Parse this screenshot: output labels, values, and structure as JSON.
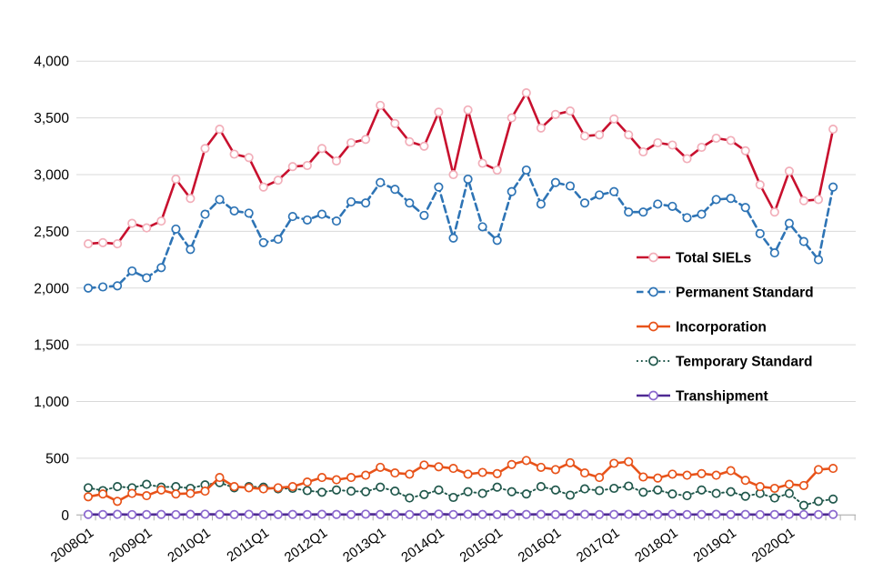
{
  "chart_data": {
    "type": "line",
    "title": "",
    "xlabel": "",
    "ylabel": "",
    "ylim": [
      0,
      4000
    ],
    "ytick_step": 500,
    "ytick_labels": [
      "0",
      "500",
      "1,000",
      "1,500",
      "2,000",
      "2,500",
      "3,000",
      "3,500",
      "4,000"
    ],
    "x_tick_labels_shown": [
      "2008Q1",
      "2009Q1",
      "2010Q1",
      "2011Q1",
      "2012Q1",
      "2013Q1",
      "2014Q1",
      "2015Q1",
      "2016Q1",
      "2017Q1",
      "2018Q1",
      "2019Q1",
      "2020Q1"
    ],
    "grid": "horizontal",
    "legend_position": "right-middle",
    "categories": [
      "2008Q1",
      "2008Q2",
      "2008Q3",
      "2008Q4",
      "2009Q1",
      "2009Q2",
      "2009Q3",
      "2009Q4",
      "2010Q1",
      "2010Q2",
      "2010Q3",
      "2010Q4",
      "2011Q1",
      "2011Q2",
      "2011Q3",
      "2011Q4",
      "2012Q1",
      "2012Q2",
      "2012Q3",
      "2012Q4",
      "2013Q1",
      "2013Q2",
      "2013Q3",
      "2013Q4",
      "2014Q1",
      "2014Q2",
      "2014Q3",
      "2014Q4",
      "2015Q1",
      "2015Q2",
      "2015Q3",
      "2015Q4",
      "2016Q1",
      "2016Q2",
      "2016Q3",
      "2016Q4",
      "2017Q1",
      "2017Q2",
      "2017Q3",
      "2017Q4",
      "2018Q1",
      "2018Q2",
      "2018Q3",
      "2018Q4",
      "2019Q1",
      "2019Q2",
      "2019Q3",
      "2019Q4",
      "2020Q1",
      "2020Q2",
      "2020Q3",
      "2020Q4"
    ],
    "series": [
      {
        "name": "Temporary Standard",
        "line_color": "#21584C",
        "marker_color": "#21584C",
        "line_style": "dotted",
        "values": [
          240,
          215,
          250,
          240,
          270,
          245,
          250,
          235,
          265,
          285,
          240,
          250,
          245,
          230,
          235,
          215,
          200,
          220,
          210,
          205,
          245,
          210,
          150,
          180,
          220,
          155,
          205,
          190,
          245,
          205,
          185,
          250,
          220,
          175,
          230,
          215,
          235,
          255,
          200,
          220,
          185,
          170,
          220,
          190,
          205,
          165,
          190,
          150,
          190,
          85,
          120,
          140
        ]
      },
      {
        "name": "Incorporation",
        "line_color": "#E8531A",
        "marker_color": "#E8531A",
        "line_style": "solid",
        "values": [
          160,
          185,
          120,
          190,
          170,
          220,
          185,
          190,
          210,
          330,
          250,
          240,
          230,
          240,
          250,
          290,
          330,
          310,
          330,
          350,
          420,
          370,
          360,
          440,
          425,
          410,
          360,
          375,
          365,
          445,
          480,
          420,
          400,
          460,
          370,
          330,
          455,
          470,
          335,
          325,
          360,
          350,
          365,
          350,
          390,
          305,
          250,
          235,
          270,
          260,
          400,
          410
        ]
      },
      {
        "name": "Transhipment",
        "line_color": "#4F2A93",
        "marker_color": "#8B68CE",
        "line_style": "solid",
        "values": [
          5,
          4,
          6,
          3,
          4,
          5,
          3,
          6,
          7,
          5,
          4,
          6,
          3,
          4,
          5,
          4,
          6,
          5,
          4,
          7,
          5,
          6,
          4,
          5,
          8,
          4,
          6,
          5,
          4,
          7,
          5,
          6,
          4,
          5,
          6,
          4,
          5,
          6,
          4,
          5,
          7,
          4,
          5,
          6,
          4,
          5,
          3,
          4,
          6,
          3,
          4,
          5
        ]
      },
      {
        "name": "Permanent Standard",
        "line_color": "#2E74B5",
        "marker_color": "#2E74B5",
        "line_style": "dashed",
        "values": [
          2000,
          2010,
          2020,
          2150,
          2090,
          2180,
          2520,
          2340,
          2650,
          2780,
          2680,
          2660,
          2400,
          2430,
          2630,
          2600,
          2650,
          2590,
          2760,
          2750,
          2930,
          2870,
          2750,
          2640,
          2890,
          2440,
          2960,
          2540,
          2420,
          2850,
          3040,
          2740,
          2930,
          2900,
          2750,
          2820,
          2850,
          2670,
          2670,
          2740,
          2720,
          2620,
          2650,
          2780,
          2790,
          2710,
          2480,
          2310,
          2570,
          2410,
          2250,
          2890
        ]
      },
      {
        "name": "Total SIELs",
        "line_color": "#C8102E",
        "marker_color": "#F2AEB9",
        "line_style": "solid",
        "values": [
          2390,
          2400,
          2390,
          2570,
          2530,
          2590,
          2960,
          2790,
          3230,
          3400,
          3180,
          3150,
          2890,
          2950,
          3070,
          3080,
          3230,
          3120,
          3280,
          3310,
          3610,
          3450,
          3290,
          3250,
          3550,
          3000,
          3570,
          3100,
          3040,
          3500,
          3720,
          3410,
          3530,
          3560,
          3340,
          3350,
          3490,
          3350,
          3200,
          3280,
          3260,
          3140,
          3240,
          3320,
          3300,
          3210,
          2910,
          2670,
          3030,
          2770,
          2780,
          3400
        ]
      }
    ],
    "legend_order": [
      "Total SIELs",
      "Permanent Standard",
      "Incorporation",
      "Temporary Standard",
      "Transhipment"
    ],
    "colors": {
      "gridline": "#D9D9D9",
      "axis_tick": "#ADADAD",
      "text": "#000000",
      "background": "#FFFFFF"
    }
  }
}
